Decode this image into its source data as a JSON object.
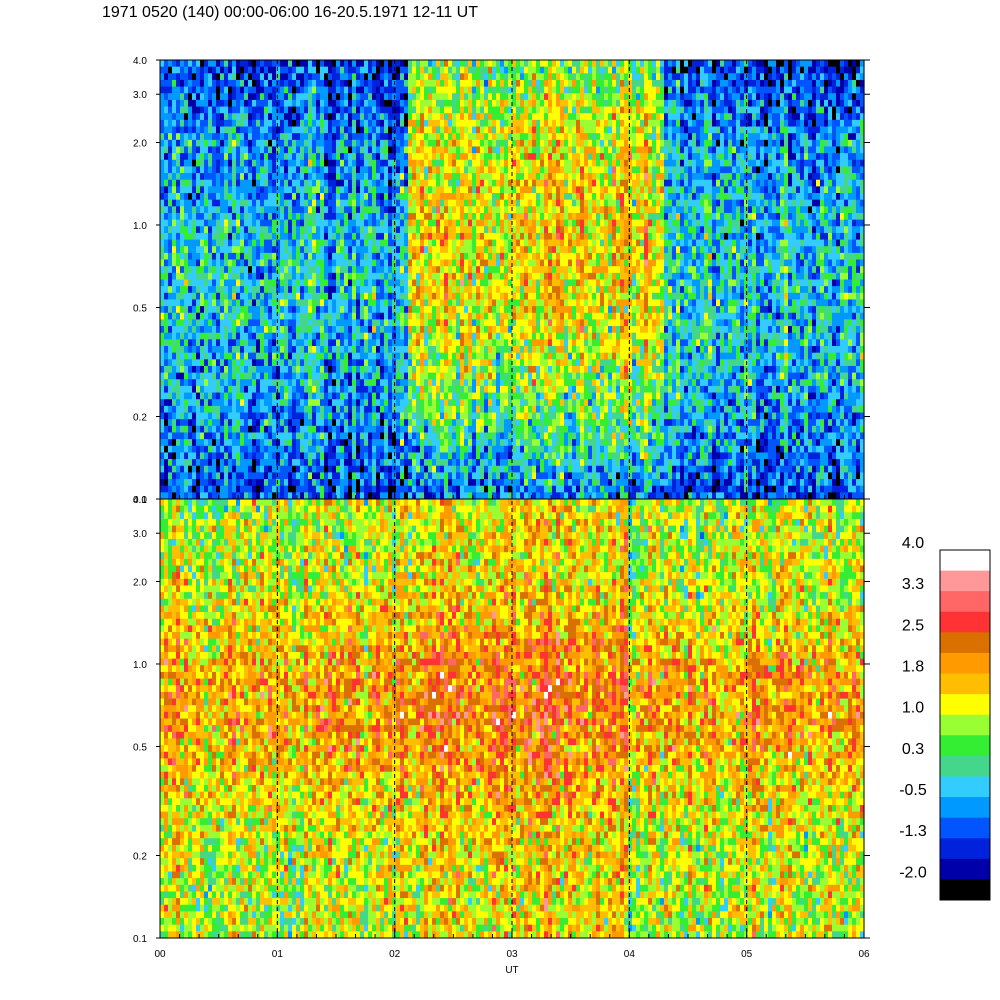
{
  "title": "1971 0520 (140) 00:00-06:00 16-20.5.1971 12-11 UT",
  "chart_data": {
    "type": "heatmap",
    "xlabel": "UT",
    "x_ticks": [
      "00",
      "01",
      "02",
      "03",
      "04",
      "05",
      "06"
    ],
    "x_range_hours": [
      0,
      6
    ],
    "y_scale": "log",
    "y_range": [
      0.1,
      4.0
    ],
    "y_ticks": [
      "0.1",
      "0.2",
      "0.5",
      "1.0",
      "2.0",
      "3.0",
      "4.0"
    ],
    "y_tick_values": [
      0.1,
      0.2,
      0.5,
      1.0,
      2.0,
      3.0,
      4.0
    ],
    "gridlines": "vertical dashed at each hour",
    "panels": [
      {
        "name": "upper",
        "active_interval_hours": [
          2.1,
          4.3
        ],
        "background_level": -0.3,
        "active_level": 1.6,
        "peak_frequency": 0.95
      },
      {
        "name": "lower",
        "background_level": 1.1,
        "peak_level": 2.0,
        "peak_frequency": 0.7
      }
    ],
    "colorbar": {
      "labels": [
        "4.0",
        "3.3",
        "2.5",
        "1.8",
        "1.0",
        "0.3",
        "-0.5",
        "-1.3",
        "-2.0"
      ],
      "range": [
        -2.0,
        4.0
      ],
      "colors": [
        "#ffffff",
        "#ff9999",
        "#ff6666",
        "#ff3333",
        "#d97000",
        "#ff9a00",
        "#ffbf00",
        "#ffff00",
        "#99ff33",
        "#33ee33",
        "#44d68a",
        "#33ccff",
        "#0099ff",
        "#0055ff",
        "#0022dd",
        "#0000aa",
        "#000000"
      ]
    }
  }
}
